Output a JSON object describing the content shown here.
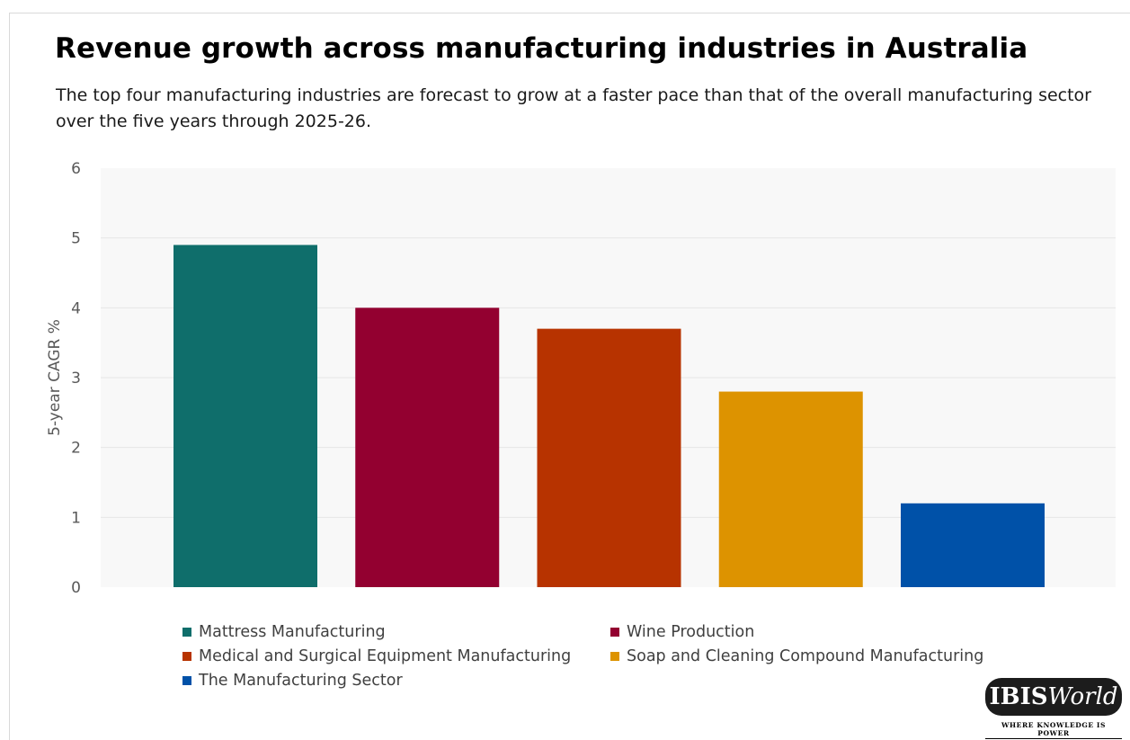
{
  "chart_data": {
    "type": "bar",
    "title": "Revenue growth across manufacturing industries in Australia",
    "subtitle": "The top four manufacturing industries are forecast to grow at a faster pace than that of the overall manufacturing sector over the five years through 2025-26.",
    "ylabel": "5-year CAGR %",
    "xlabel": "",
    "ylim": [
      0,
      6
    ],
    "yticks": [
      0,
      1,
      2,
      3,
      4,
      5,
      6
    ],
    "grid": true,
    "legend_position": "bottom",
    "categories": [
      "Mattress Manufacturing",
      "Wine Production",
      "Medical and Surgical Equipment Manufacturing",
      "Soap and Cleaning Compound Manufacturing",
      "The Manufacturing Sector"
    ],
    "values": [
      4.9,
      4.0,
      3.7,
      2.8,
      1.2
    ],
    "colors": [
      "#0f6e6b",
      "#930030",
      "#b73300",
      "#dd9300",
      "#0051a8"
    ]
  },
  "branding": {
    "logo_bold": "IBIS",
    "logo_italic": "World",
    "tagline": "WHERE KNOWLEDGE IS POWER"
  }
}
